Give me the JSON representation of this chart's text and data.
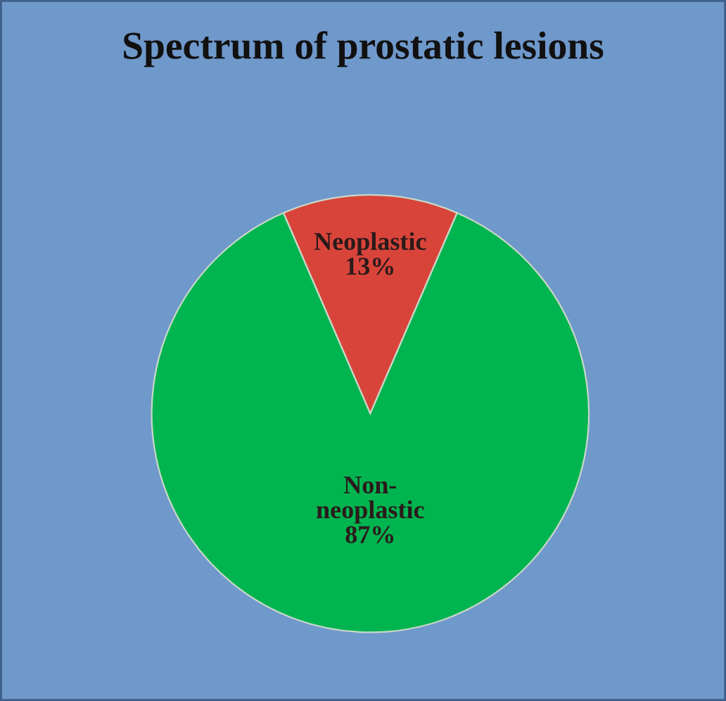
{
  "chart_data": {
    "type": "pie",
    "title": "Spectrum of prostatic lesions",
    "categories": [
      "Neoplastic",
      "Non-neoplastic"
    ],
    "values": [
      13,
      87
    ],
    "colors": [
      "#d9443a",
      "#00b450"
    ],
    "value_labels": [
      "13%",
      "87%"
    ]
  }
}
